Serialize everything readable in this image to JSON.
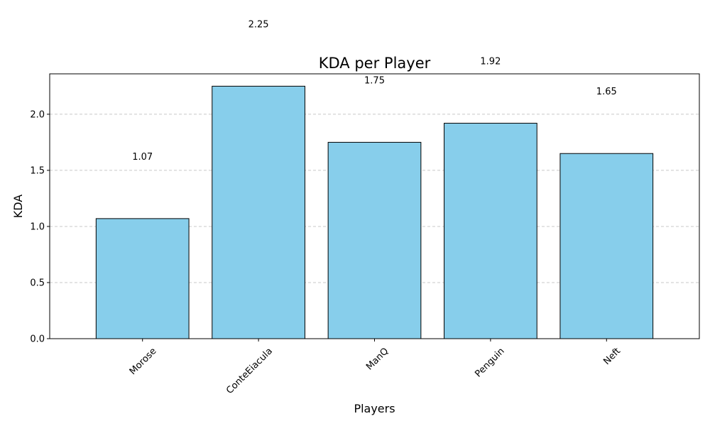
{
  "chart_data": {
    "type": "bar",
    "title": "KDA per Player",
    "xlabel": "Players",
    "ylabel": "KDA",
    "categories": [
      "Morose",
      "ConteEiacula",
      "ManQ",
      "Penguin",
      "Neft"
    ],
    "values": [
      1.07,
      2.25,
      1.75,
      1.92,
      1.65
    ],
    "data_labels": [
      "1.07",
      "2.25",
      "1.75",
      "1.92",
      "1.65"
    ],
    "ylim": [
      0,
      2.36
    ],
    "yticks": [
      0.0,
      0.5,
      1.0,
      1.5,
      2.0
    ],
    "ytick_labels": [
      "0.0",
      "0.5",
      "1.0",
      "1.5",
      "2.0"
    ],
    "grid": "y-dashed",
    "bar_color": "#87ceeb",
    "bar_edge_color": "#000000",
    "grid_color": "#c8c8c8"
  }
}
